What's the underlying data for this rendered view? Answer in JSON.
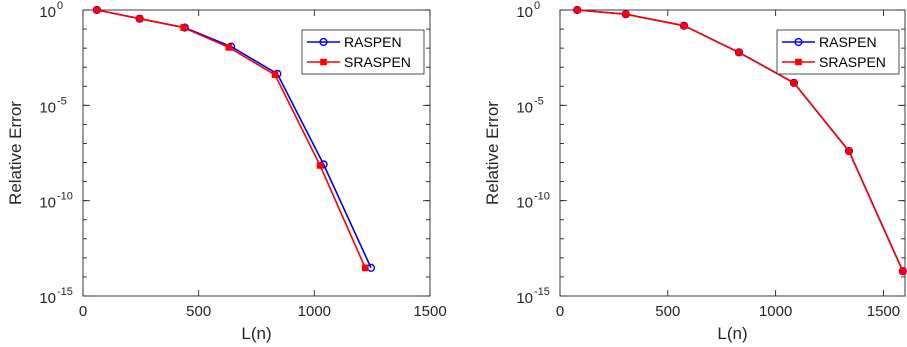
{
  "chart_data": [
    {
      "type": "line",
      "xlabel": "L(n)",
      "ylabel": "Relative Error",
      "xlim": [
        0,
        1500
      ],
      "ylim_log10": [
        -15,
        0
      ],
      "yscale": "log",
      "xticks": [
        0,
        500,
        1000,
        1500
      ],
      "yticks": [
        {
          "base": "10",
          "exp": "0",
          "v": 0
        },
        {
          "base": "10",
          "exp": "-5",
          "v": -5
        },
        {
          "base": "10",
          "exp": "-10",
          "v": -10
        },
        {
          "base": "10",
          "exp": "-15",
          "v": -15
        }
      ],
      "legend_position": "top-right",
      "series": [
        {
          "name": "RASPEN",
          "color": "#0000ff",
          "marker": "circle",
          "x": [
            60,
            245,
            440,
            640,
            840,
            1040,
            1245
          ],
          "y": [
            1,
            0.35,
            0.12,
            0.012,
            0.00045,
            8e-09,
            3e-14
          ]
        },
        {
          "name": "SRASPEN",
          "color": "#ff0000",
          "marker": "square",
          "x": [
            60,
            245,
            435,
            630,
            830,
            1025,
            1220
          ],
          "y": [
            1,
            0.35,
            0.12,
            0.011,
            0.0004,
            7e-09,
            3e-14
          ]
        }
      ]
    },
    {
      "type": "line",
      "xlabel": "L(n)",
      "ylabel": "Relative Error",
      "xlim": [
        0,
        1600
      ],
      "ylim_log10": [
        -15,
        0
      ],
      "yscale": "log",
      "xticks": [
        0,
        500,
        1000,
        1500
      ],
      "yticks": [
        {
          "base": "10",
          "exp": "0",
          "v": 0
        },
        {
          "base": "10",
          "exp": "-5",
          "v": -5
        },
        {
          "base": "10",
          "exp": "-10",
          "v": -10
        },
        {
          "base": "10",
          "exp": "-15",
          "v": -15
        }
      ],
      "legend_position": "top-right",
      "series": [
        {
          "name": "RASPEN",
          "color": "#0000ff",
          "marker": "circle",
          "x": [
            80,
            305,
            575,
            830,
            1085,
            1340,
            1590
          ],
          "y": [
            1,
            0.6,
            0.15,
            0.006,
            0.00015,
            4e-08,
            2e-14
          ]
        },
        {
          "name": "SRASPEN",
          "color": "#ff0000",
          "marker": "square",
          "x": [
            80,
            305,
            575,
            830,
            1085,
            1340,
            1590
          ],
          "y": [
            1,
            0.6,
            0.15,
            0.006,
            0.00015,
            4e-08,
            2e-14
          ]
        }
      ]
    }
  ]
}
